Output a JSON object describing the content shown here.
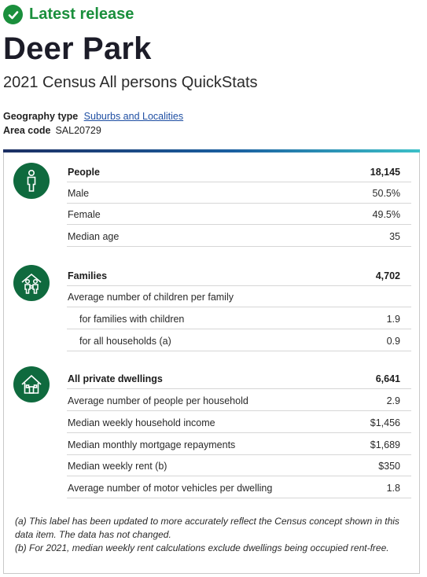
{
  "status": {
    "label": "Latest release",
    "icon": "check-circle-icon",
    "color": "#1a8f3c"
  },
  "page": {
    "title": "Deer Park",
    "subtitle": "2021 Census All persons QuickStats"
  },
  "geography": {
    "type_label": "Geography type",
    "type_link": "Suburbs and Localities",
    "area_code_label": "Area code",
    "area_code": "SAL20729"
  },
  "sections": {
    "people": {
      "icon": "person-icon",
      "rows": [
        {
          "label": "People",
          "value": "18,145"
        },
        {
          "label": "Male",
          "value": "50.5%"
        },
        {
          "label": "Female",
          "value": "49.5%"
        },
        {
          "label": "Median age",
          "value": "35"
        }
      ]
    },
    "families": {
      "icon": "family-icon",
      "rows": [
        {
          "label": "Families",
          "value": "4,702"
        },
        {
          "label": "Average number of children per family",
          "value": ""
        },
        {
          "label": "for families with children",
          "value": "1.9"
        },
        {
          "label": "for all households (a)",
          "value": "0.9"
        }
      ]
    },
    "dwellings": {
      "icon": "house-icon",
      "rows": [
        {
          "label": "All private dwellings",
          "value": "6,641"
        },
        {
          "label": "Average number of people per household",
          "value": "2.9"
        },
        {
          "label": "Median weekly household income",
          "value": "$1,456"
        },
        {
          "label": "Median monthly mortgage repayments",
          "value": "$1,689"
        },
        {
          "label": "Median weekly rent (b)",
          "value": "$350"
        },
        {
          "label": "Average number of motor vehicles per dwelling",
          "value": "1.8"
        }
      ]
    }
  },
  "notes": [
    "(a) This label has been updated to more accurately reflect the Census concept shown in this data item. The data has not changed.",
    "(b) For 2021, median weekly rent calculations exclude dwellings being occupied rent-free."
  ],
  "colors": {
    "accent": "#0f6a3e",
    "link": "#1f4fa3"
  }
}
